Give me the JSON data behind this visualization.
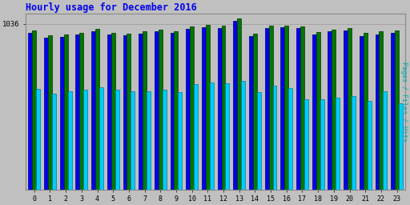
{
  "title": "Hourly usage for December 2016",
  "ylabel": "Pages / Files / Hits",
  "hours": [
    0,
    1,
    2,
    3,
    4,
    5,
    6,
    7,
    8,
    9,
    10,
    11,
    12,
    13,
    14,
    15,
    16,
    17,
    18,
    19,
    20,
    21,
    22,
    23
  ],
  "pages": [
    980,
    950,
    955,
    968,
    990,
    968,
    962,
    975,
    990,
    978,
    1005,
    1015,
    1010,
    1055,
    960,
    1010,
    1015,
    1008,
    972,
    988,
    995,
    960,
    972,
    978
  ],
  "files": [
    995,
    965,
    968,
    982,
    1005,
    980,
    975,
    988,
    1002,
    992,
    1018,
    1028,
    1025,
    1068,
    975,
    1025,
    1025,
    1020,
    985,
    1002,
    1012,
    978,
    988,
    993
  ],
  "hits": [
    630,
    600,
    615,
    625,
    638,
    625,
    612,
    612,
    622,
    608,
    660,
    668,
    665,
    680,
    610,
    648,
    636,
    562,
    562,
    572,
    582,
    552,
    612,
    538
  ],
  "bar_width": 0.25,
  "pages_color": "#0000EE",
  "files_color": "#007700",
  "hits_color": "#00CCFF",
  "pages_edge": "#000077",
  "files_edge": "#003300",
  "hits_edge": "#007799",
  "bg_color": "#C0C0C0",
  "plot_bg_color": "#C0C0C0",
  "title_color": "#0000EE",
  "ylabel_color": "#00AAAA",
  "tick_color": "#000000",
  "grid_color": "#999999",
  "ylim_min": 0,
  "ylim_max": 1100,
  "ytick_val": 1036
}
